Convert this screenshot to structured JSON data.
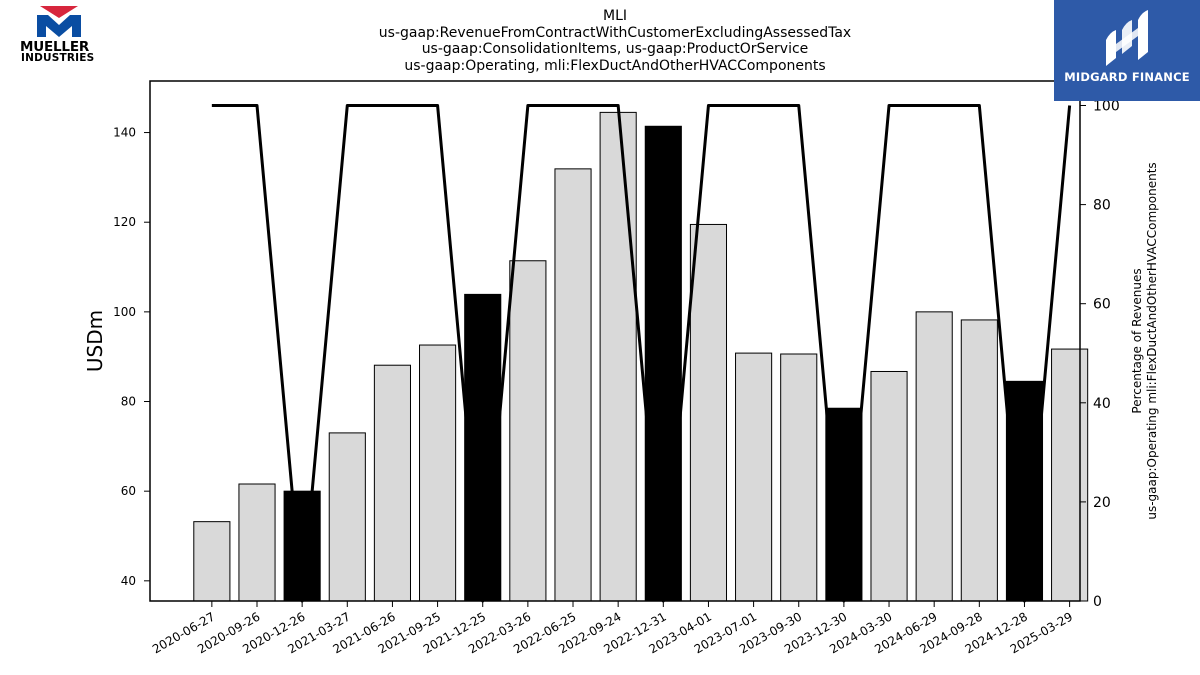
{
  "logos": {
    "left_line1": "MUELLER",
    "left_line2": "INDUSTRIES",
    "right_text": "MIDGARD FINANCE"
  },
  "colors": {
    "highlight_bar": "#000000",
    "normal_bar": "#d9d9d9",
    "line": "#000000",
    "midgard_blue": "#2e5aa8",
    "mueller_red": "#d7263d",
    "mueller_blue": "#0a4da2"
  },
  "chart_data": {
    "type": "bar",
    "title_lines": [
      "MLI",
      "us-gaap:RevenueFromContractWithCustomerExcludingAssessedTax",
      "us-gaap:ConsolidationItems, us-gaap:ProductOrService",
      "us-gaap:Operating, mli:FlexDuctAndOtherHVACComponents"
    ],
    "ylabel": "USDm",
    "y2label_lines": [
      "Percentage of Revenues",
      "us-gaap:Operating mli:FlexDuctAndOtherHVACComponents"
    ],
    "ylim": [
      35.5,
      151.5
    ],
    "y2lim": [
      0,
      100
    ],
    "yticks": [
      40,
      60,
      80,
      100,
      120,
      140
    ],
    "y2ticks": [
      0,
      20,
      40,
      60,
      80,
      100
    ],
    "categories": [
      "2020-06-27",
      "2020-09-26",
      "2020-12-26",
      "2021-03-27",
      "2021-06-26",
      "2021-09-25",
      "2021-12-25",
      "2022-03-26",
      "2022-06-25",
      "2022-09-24",
      "2022-12-31",
      "2023-04-01",
      "2023-07-01",
      "2023-09-30",
      "2023-12-30",
      "2024-03-30",
      "2024-06-29",
      "2024-09-28",
      "2024-12-28",
      "2025-03-29"
    ],
    "series": [
      {
        "type": "bar",
        "values": [
          53.2,
          61.6,
          60.0,
          73.0,
          88.1,
          92.6,
          103.9,
          111.4,
          131.9,
          144.5,
          141.4,
          119.5,
          90.8,
          90.6,
          78.5,
          86.7,
          100.0,
          98.2,
          84.5,
          91.7
        ],
        "highlight": [
          false,
          false,
          true,
          false,
          false,
          false,
          true,
          false,
          false,
          false,
          true,
          false,
          false,
          false,
          true,
          false,
          false,
          false,
          true,
          false
        ]
      },
      {
        "type": "line",
        "axis": "right",
        "values": [
          100,
          100,
          0,
          100,
          100,
          100,
          0,
          100,
          100,
          100,
          0,
          100,
          100,
          100,
          0,
          100,
          100,
          100,
          0,
          100
        ]
      }
    ],
    "grid": false,
    "legend": "none"
  }
}
